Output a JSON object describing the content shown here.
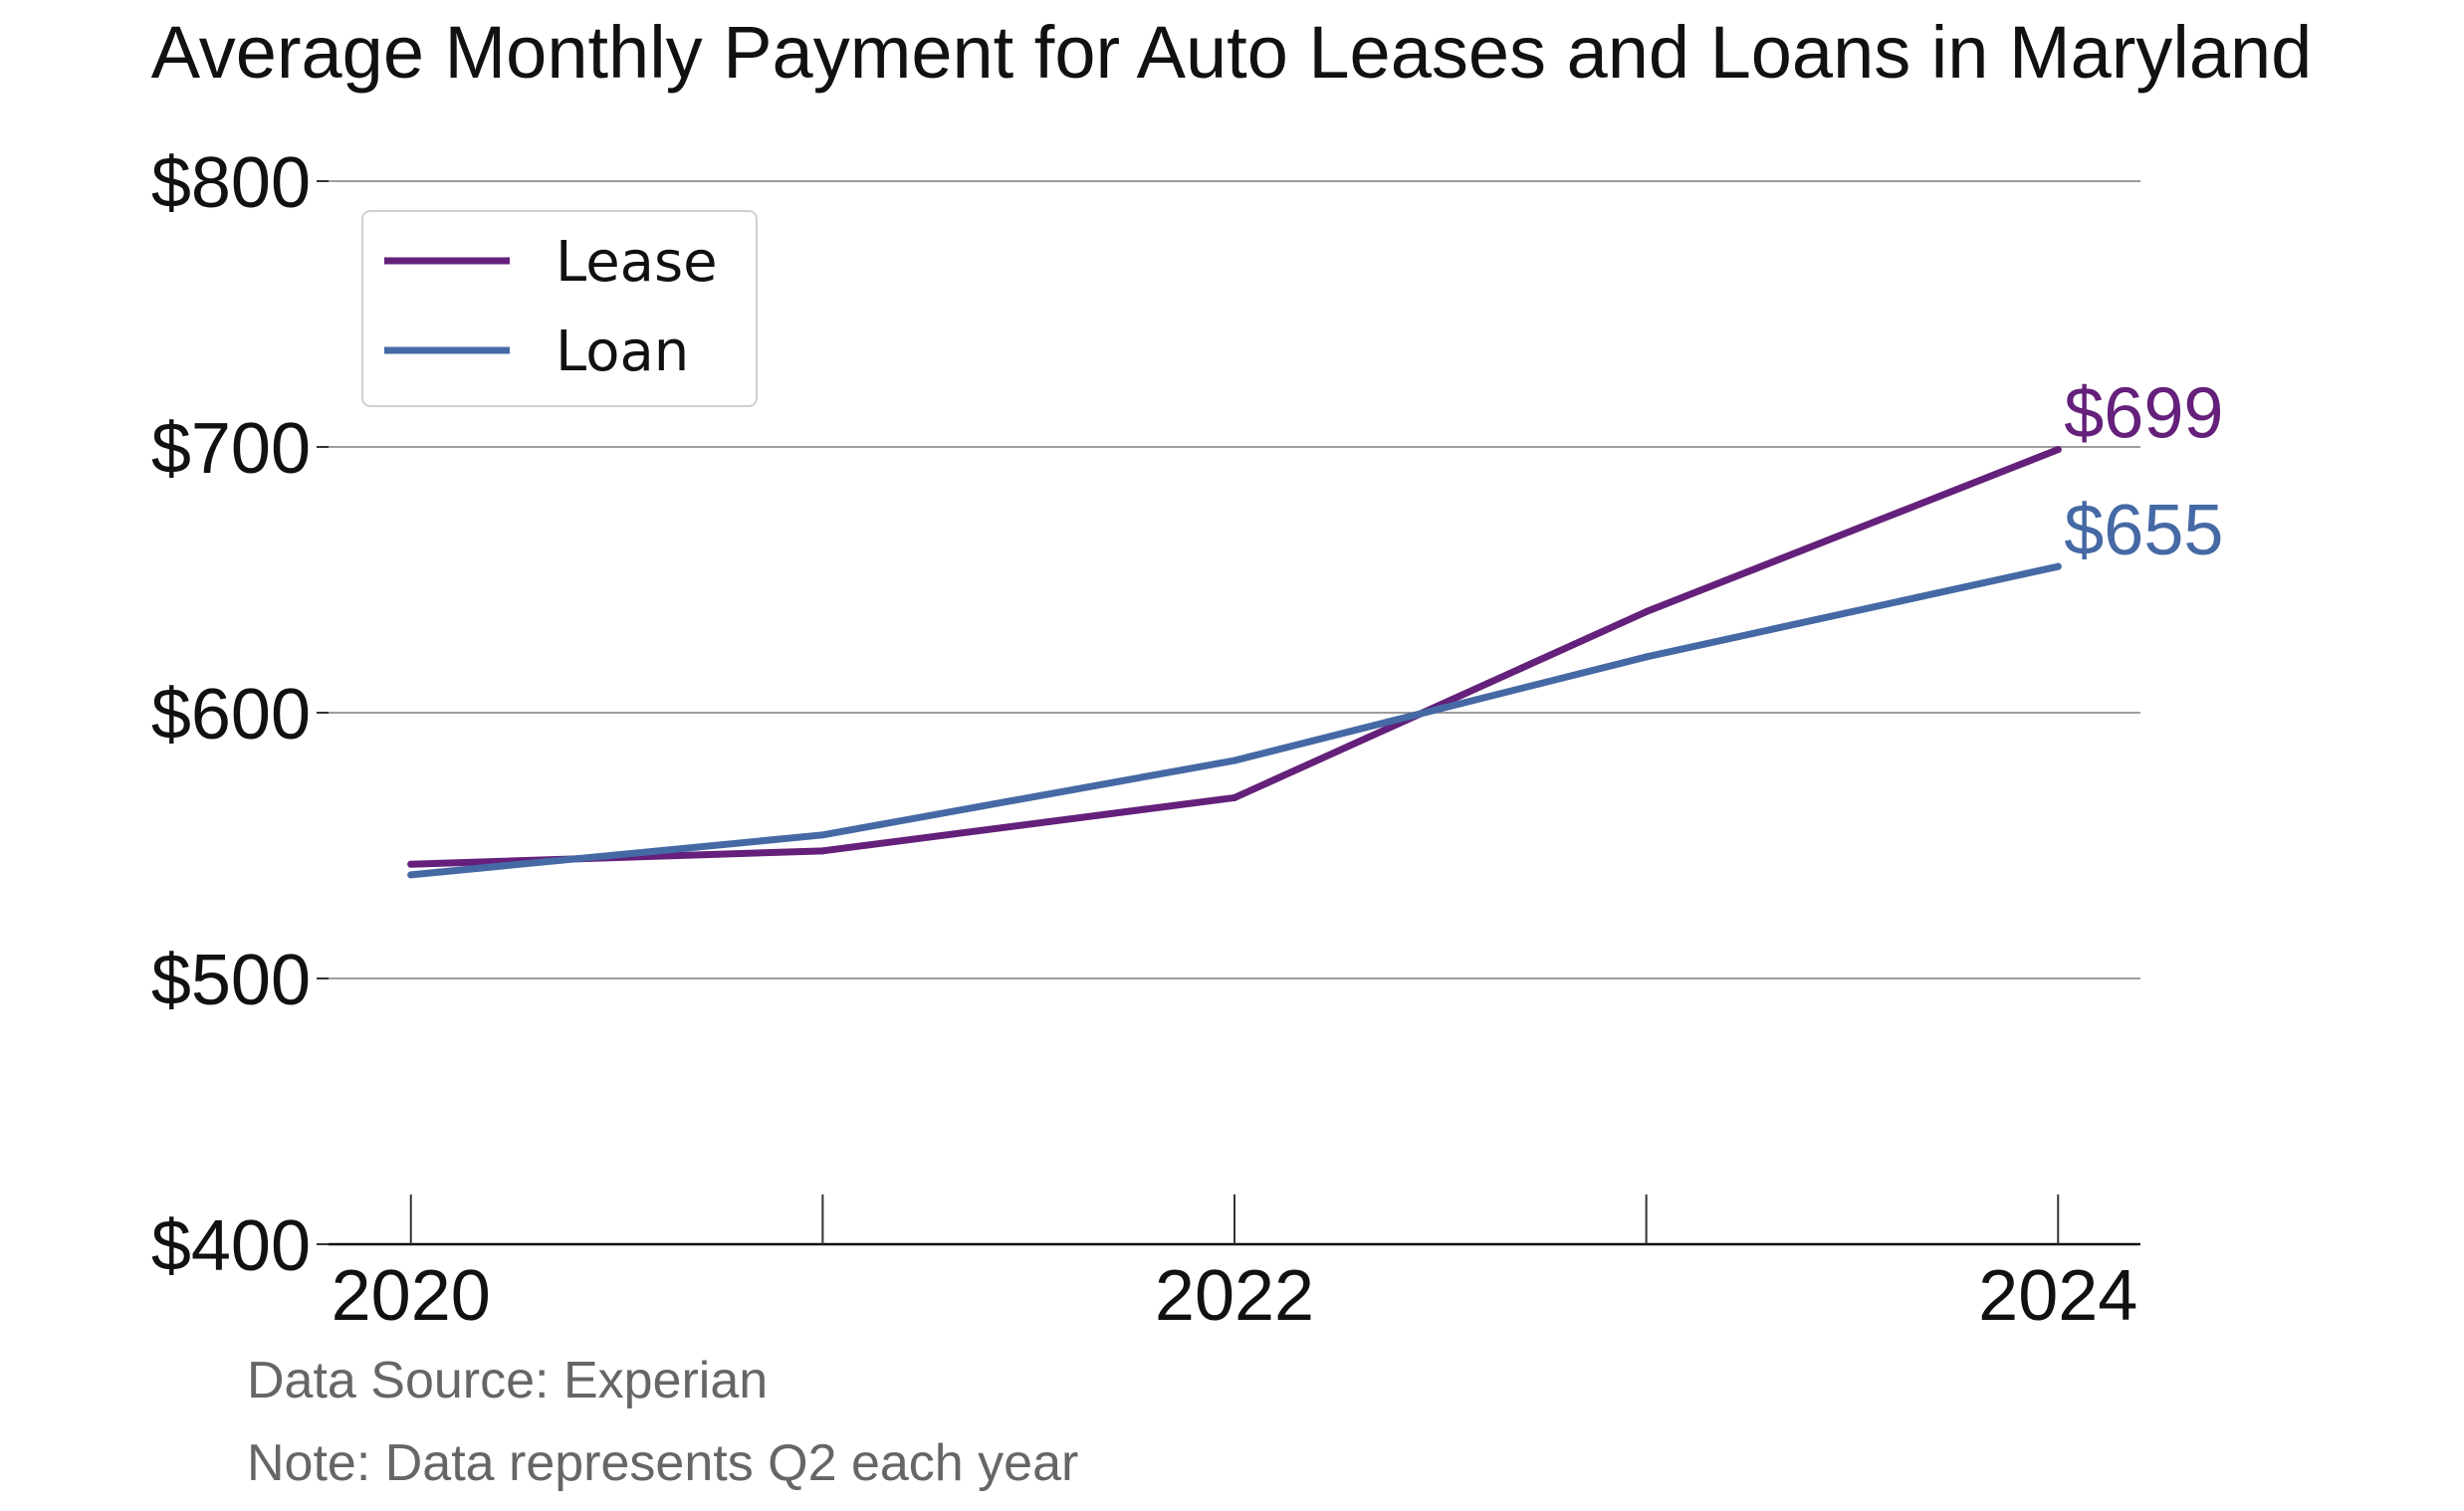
{
  "chart_data": {
    "type": "line",
    "title": "Average Monthly Payment for Auto Leases and Loans in Maryland",
    "x": [
      2020,
      2021,
      2022,
      2023,
      2024
    ],
    "x_tick_values": [
      2020,
      2022,
      2024
    ],
    "x_tick_labels": [
      "2020",
      "2022",
      "2024"
    ],
    "xlim": [
      2019.8,
      2024.2
    ],
    "ylim": [
      400,
      800
    ],
    "y_tick_values": [
      400,
      500,
      600,
      700,
      800
    ],
    "y_tick_labels": [
      "$400",
      "$500",
      "$600",
      "$700",
      "$800"
    ],
    "grid": true,
    "legend_position": "top-left",
    "series": [
      {
        "name": "Lease",
        "color": "#64207a",
        "values": [
          543,
          548,
          568,
          638,
          699
        ],
        "end_label": "$699"
      },
      {
        "name": "Loan",
        "color": "#4569a4",
        "values": [
          539,
          554,
          582,
          621,
          655
        ],
        "end_label": "$655"
      }
    ],
    "notes": [
      "Data Source: Experian",
      "Note: Data represents Q2 each year"
    ]
  }
}
